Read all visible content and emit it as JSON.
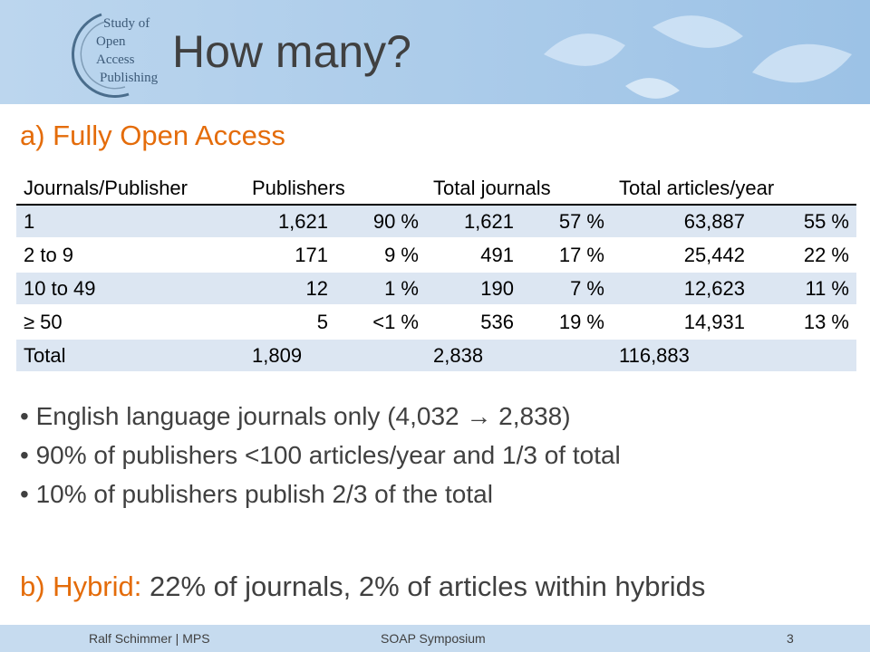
{
  "header": {
    "logo": [
      "Study of",
      "Open",
      "Access",
      "Publishing"
    ],
    "title": "How many?"
  },
  "section_a": "a) Fully Open Access",
  "table": {
    "header": [
      "Journals/Publisher",
      "Publishers",
      "Total journals",
      "Total articles/year"
    ],
    "rows": [
      [
        "1",
        "1,621",
        "90 %",
        "1,621",
        "57 %",
        "63,887",
        "55 %"
      ],
      [
        "2 to 9",
        "171",
        "9 %",
        "491",
        "17 %",
        "25,442",
        "22 %"
      ],
      [
        "10 to 49",
        "12",
        "1 %",
        "190",
        "7 %",
        "12,623",
        "11 %"
      ],
      [
        "≥ 50",
        "5",
        "<1 %",
        "536",
        "19 %",
        "14,931",
        "13 %"
      ],
      [
        "Total",
        "1,809",
        null,
        "2,838",
        null,
        "116,883",
        null
      ]
    ]
  },
  "bullets": [
    "English language journals only (4,032 → 2,838)",
    "90% of publishers <100 articles/year and 1/3 of total",
    "10% of publishers publish 2/3 of the total"
  ],
  "section_b": {
    "label": "b) Hybrid:",
    "text": "22% of journals, 2% of articles within hybrids"
  },
  "footer": {
    "left": "Ralf Schimmer | MPS",
    "center": "SOAP Symposium",
    "right": "3"
  }
}
